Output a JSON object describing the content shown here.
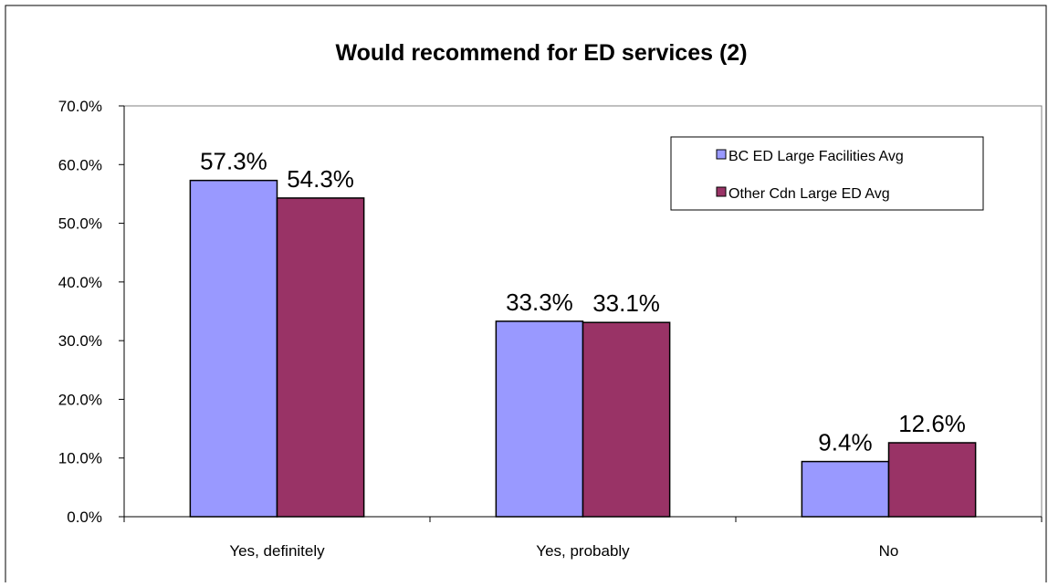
{
  "chart_data": {
    "type": "bar",
    "title": "Would recommend for ED services (2)",
    "xlabel": "",
    "ylabel": "",
    "categories": [
      "Yes, definitely",
      "Yes, probably",
      "No"
    ],
    "series": [
      {
        "name": "BC ED Large Facilities Avg",
        "values": [
          57.3,
          33.3,
          9.4
        ],
        "labels": [
          "57.3%",
          "33.3%",
          "9.4%"
        ],
        "color": "#9999ff"
      },
      {
        "name": "Other Cdn Large ED Avg",
        "values": [
          54.3,
          33.1,
          12.6
        ],
        "labels": [
          "54.3%",
          "33.1%",
          "12.6%"
        ],
        "color": "#993366"
      }
    ],
    "ylim": [
      0,
      70
    ],
    "yticks": [
      0,
      10,
      20,
      30,
      40,
      50,
      60,
      70
    ],
    "ytick_labels": [
      "0.0%",
      "10.0%",
      "20.0%",
      "30.0%",
      "40.0%",
      "50.0%",
      "60.0%",
      "70.0%"
    ],
    "grid": false,
    "legend_position": "top-right"
  }
}
